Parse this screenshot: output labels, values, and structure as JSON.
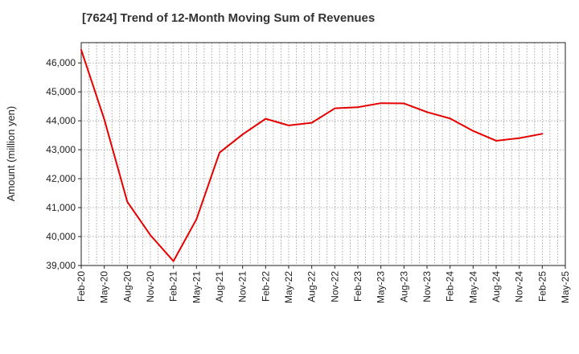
{
  "chart_data": {
    "type": "line",
    "title": "[7624]  Trend of 12-Month Moving Sum of Revenues",
    "xlabel": "",
    "ylabel": "Amount (million yen)",
    "ylim": [
      39000,
      46700
    ],
    "y_ticks": [
      39000,
      40000,
      41000,
      42000,
      43000,
      44000,
      45000,
      46000
    ],
    "y_tick_labels": [
      "39,000",
      "40,000",
      "41,000",
      "42,000",
      "43,000",
      "44,000",
      "45,000",
      "46,000"
    ],
    "x_tick_labels": [
      "Feb-20",
      "May-20",
      "Aug-20",
      "Nov-20",
      "Feb-21",
      "May-21",
      "Aug-21",
      "Nov-21",
      "Feb-22",
      "May-22",
      "Aug-22",
      "Nov-22",
      "Feb-23",
      "May-23",
      "Aug-23",
      "Nov-23",
      "Feb-24",
      "May-24",
      "Aug-24",
      "Nov-24",
      "Feb-25",
      "May-25"
    ],
    "grid": true,
    "series": [
      {
        "color": "#e60000",
        "x": [
          "Feb-20",
          "May-20",
          "Aug-20",
          "Nov-20",
          "Feb-21",
          "May-21",
          "Aug-21",
          "Nov-21",
          "Feb-22",
          "May-22",
          "Aug-22",
          "Nov-22",
          "Feb-23",
          "May-23",
          "Aug-23",
          "Nov-23",
          "Feb-24",
          "May-24",
          "Aug-24",
          "Nov-24",
          "Feb-25"
        ],
        "values": [
          46450,
          44050,
          41200,
          40050,
          39150,
          40600,
          42900,
          43530,
          44070,
          43840,
          43930,
          44430,
          44470,
          44610,
          44600,
          44300,
          44080,
          43650,
          43310,
          43400,
          43550
        ]
      }
    ]
  }
}
